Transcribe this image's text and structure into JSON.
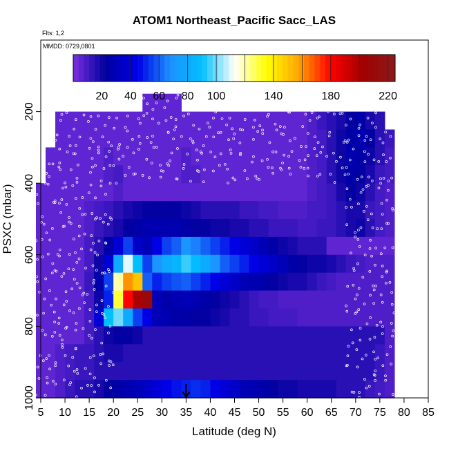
{
  "chart_data": {
    "type": "heatmap",
    "title": "ATOM1 Northeast_Pacific Sacc_LAS",
    "flights_label": "Flts: 1,2",
    "dates_label": "MMDD: 0729,0801",
    "xlabel": "Latitude (deg N)",
    "ylabel": "PSXC (mbar)",
    "xlim": [
      5,
      85
    ],
    "ylim": [
      1000,
      0
    ],
    "x_ticks": [
      "5",
      "10",
      "15",
      "20",
      "25",
      "30",
      "35",
      "40",
      "45",
      "50",
      "55",
      "60",
      "65",
      "70",
      "75",
      "80",
      "85"
    ],
    "y_ticks": [
      "200",
      "400",
      "600",
      "800",
      "1000"
    ],
    "colorbar": {
      "range": [
        0,
        225
      ],
      "tick_labels": [
        "20",
        "40",
        "60",
        "80",
        "100",
        "140",
        "180",
        "220"
      ],
      "colors": [
        "#7b2fe0",
        "#0000a0",
        "#0000e6",
        "#1e90ff",
        "#00bfff",
        "#ffffff",
        "#ffff00",
        "#ffa500",
        "#ff0000",
        "#a00000",
        "#8b1a1a"
      ]
    },
    "marker_latitude": "35",
    "grid": {
      "lat": [
        5,
        7,
        9,
        11,
        13,
        15,
        17,
        19,
        21,
        23,
        25,
        27,
        29,
        31,
        33,
        35,
        37,
        39,
        41,
        43,
        45,
        47,
        49,
        51,
        53,
        55,
        57,
        59,
        61,
        63,
        65,
        67,
        69,
        71,
        73,
        75,
        77,
        79
      ],
      "pressure": [
        175,
        225,
        275,
        325,
        375,
        425,
        475,
        525,
        575,
        625,
        675,
        725,
        775,
        825,
        875,
        925,
        975
      ],
      "values": [
        [
          null,
          null,
          null,
          null,
          null,
          null,
          null,
          null,
          null,
          null,
          null,
          5,
          5,
          5,
          5,
          null,
          null,
          null,
          null,
          null,
          null,
          null,
          null,
          null,
          null,
          null,
          null,
          null,
          null,
          null,
          null,
          null,
          null,
          null,
          null,
          null,
          null,
          null
        ],
        [
          null,
          null,
          5,
          5,
          5,
          5,
          5,
          5,
          5,
          5,
          5,
          5,
          5,
          5,
          5,
          5,
          5,
          5,
          5,
          5,
          5,
          5,
          5,
          5,
          5,
          5,
          5,
          5,
          8,
          12,
          15,
          18,
          22,
          25,
          18,
          15,
          null,
          null
        ],
        [
          null,
          null,
          5,
          5,
          5,
          5,
          5,
          5,
          5,
          5,
          5,
          5,
          5,
          5,
          5,
          5,
          5,
          5,
          5,
          5,
          5,
          5,
          5,
          5,
          5,
          5,
          5,
          5,
          8,
          10,
          15,
          20,
          25,
          28,
          22,
          15,
          12,
          null
        ],
        [
          null,
          5,
          5,
          5,
          5,
          5,
          5,
          8,
          5,
          5,
          5,
          5,
          5,
          5,
          5,
          8,
          5,
          5,
          5,
          5,
          5,
          5,
          5,
          5,
          5,
          5,
          5,
          5,
          8,
          10,
          15,
          20,
          28,
          25,
          20,
          15,
          10,
          null
        ],
        [
          null,
          5,
          5,
          5,
          5,
          5,
          5,
          8,
          10,
          5,
          5,
          5,
          5,
          5,
          5,
          8,
          8,
          5,
          5,
          5,
          5,
          5,
          5,
          5,
          5,
          5,
          5,
          5,
          8,
          10,
          15,
          20,
          25,
          22,
          18,
          12,
          10,
          null
        ],
        [
          5,
          5,
          5,
          5,
          5,
          5,
          5,
          5,
          8,
          5,
          5,
          5,
          5,
          5,
          5,
          5,
          5,
          5,
          5,
          5,
          5,
          5,
          5,
          5,
          5,
          5,
          5,
          5,
          8,
          10,
          12,
          18,
          22,
          20,
          15,
          10,
          8,
          null
        ],
        [
          5,
          5,
          5,
          5,
          5,
          8,
          10,
          12,
          15,
          18,
          20,
          22,
          22,
          22,
          22,
          20,
          18,
          15,
          15,
          15,
          15,
          12,
          12,
          10,
          10,
          8,
          8,
          8,
          10,
          10,
          12,
          15,
          18,
          18,
          12,
          10,
          8,
          null
        ],
        [
          5,
          5,
          5,
          5,
          5,
          8,
          12,
          15,
          18,
          22,
          25,
          28,
          28,
          28,
          28,
          25,
          22,
          22,
          20,
          20,
          18,
          18,
          15,
          15,
          12,
          12,
          12,
          10,
          10,
          12,
          12,
          15,
          18,
          20,
          15,
          10,
          8,
          null
        ],
        [
          5,
          5,
          5,
          5,
          5,
          10,
          15,
          25,
          40,
          55,
          35,
          30,
          45,
          55,
          60,
          70,
          65,
          60,
          55,
          50,
          45,
          40,
          35,
          30,
          25,
          20,
          18,
          15,
          15,
          15,
          5,
          5,
          5,
          5,
          5,
          5,
          5,
          null
        ],
        [
          5,
          5,
          5,
          5,
          5,
          10,
          20,
          40,
          80,
          110,
          90,
          55,
          70,
          80,
          85,
          95,
          88,
          80,
          70,
          60,
          55,
          50,
          45,
          40,
          35,
          30,
          25,
          22,
          20,
          20,
          18,
          15,
          12,
          10,
          8,
          8,
          8,
          null
        ],
        [
          5,
          5,
          5,
          5,
          5,
          12,
          25,
          55,
          120,
          160,
          150,
          60,
          50,
          55,
          58,
          60,
          55,
          50,
          45,
          40,
          35,
          30,
          28,
          25,
          22,
          20,
          18,
          18,
          15,
          12,
          10,
          8,
          8,
          8,
          8,
          8,
          8,
          null
        ],
        [
          5,
          5,
          5,
          5,
          5,
          10,
          20,
          50,
          130,
          180,
          200,
          210,
          30,
          25,
          28,
          30,
          28,
          25,
          22,
          20,
          18,
          15,
          12,
          10,
          10,
          8,
          8,
          8,
          8,
          8,
          8,
          8,
          8,
          8,
          8,
          8,
          8,
          null
        ],
        [
          5,
          5,
          5,
          5,
          5,
          10,
          40,
          90,
          100,
          80,
          55,
          45,
          30,
          28,
          25,
          25,
          22,
          22,
          20,
          18,
          15,
          15,
          12,
          12,
          10,
          10,
          10,
          8,
          8,
          8,
          8,
          8,
          8,
          8,
          8,
          8,
          8,
          null
        ],
        [
          5,
          5,
          5,
          5,
          5,
          10,
          15,
          20,
          22,
          22,
          20,
          15,
          15,
          15,
          15,
          15,
          15,
          15,
          15,
          15,
          15,
          15,
          15,
          15,
          15,
          15,
          15,
          15,
          15,
          15,
          15,
          15,
          15,
          15,
          15,
          15,
          8,
          null
        ],
        [
          5,
          5,
          8,
          10,
          12,
          12,
          15,
          18,
          18,
          15,
          15,
          15,
          15,
          15,
          15,
          15,
          15,
          15,
          15,
          15,
          15,
          15,
          15,
          15,
          15,
          15,
          15,
          15,
          15,
          15,
          15,
          15,
          15,
          15,
          15,
          12,
          8,
          null
        ],
        [
          5,
          5,
          8,
          10,
          12,
          12,
          15,
          15,
          15,
          15,
          15,
          15,
          15,
          15,
          15,
          15,
          15,
          15,
          15,
          15,
          15,
          15,
          15,
          15,
          15,
          15,
          15,
          15,
          15,
          15,
          15,
          15,
          15,
          15,
          15,
          12,
          8,
          null
        ],
        [
          5,
          5,
          8,
          12,
          15,
          15,
          18,
          22,
          25,
          28,
          30,
          35,
          40,
          45,
          48,
          50,
          52,
          50,
          45,
          40,
          35,
          30,
          28,
          25,
          22,
          20,
          20,
          18,
          18,
          18,
          18,
          15,
          15,
          15,
          12,
          10,
          8,
          null
        ]
      ]
    }
  }
}
